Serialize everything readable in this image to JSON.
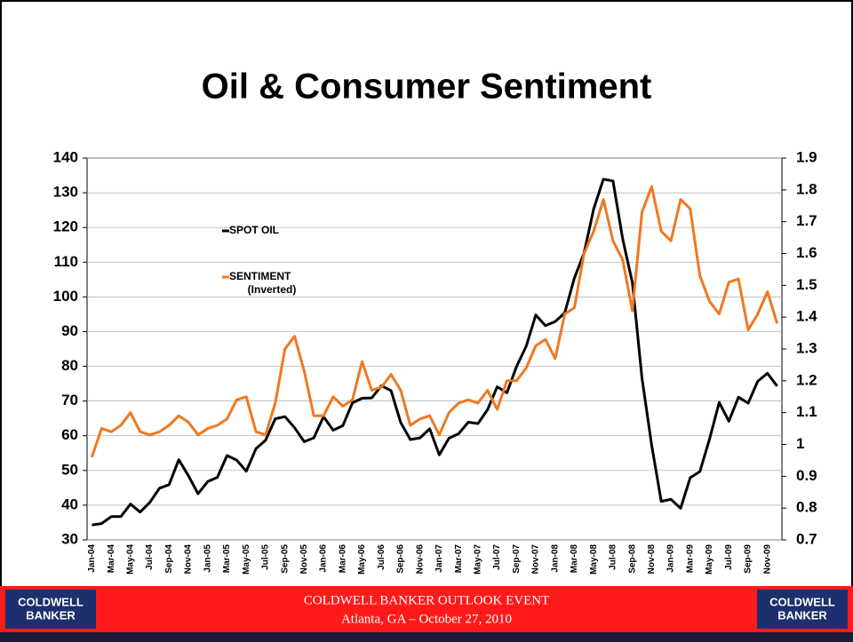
{
  "chart_data": {
    "type": "line",
    "title": "Oil & Consumer Sentiment",
    "categories": [
      "Jan-04",
      null,
      "Mar-04",
      null,
      "May-04",
      null,
      "Jul-04",
      null,
      "Sep-04",
      null,
      "Nov-04",
      null,
      "Jan-05",
      null,
      "Mar-05",
      null,
      "May-05",
      null,
      "Jul-05",
      null,
      "Sep-05",
      null,
      "Nov-05",
      null,
      "Jan-06",
      null,
      "Mar-06",
      null,
      "May-06",
      null,
      "Jul-06",
      null,
      "Sep-06",
      null,
      "Nov-06",
      null,
      "Jan-07",
      null,
      "Mar-07",
      null,
      "May-07",
      null,
      "Jul-07",
      null,
      "Sep-07",
      null,
      "Nov-07",
      null,
      "Jan-08",
      null,
      "Mar-08",
      null,
      "May-08",
      null,
      "Jul-08",
      null,
      "Sep-08",
      null,
      "Nov-08",
      null,
      "Jan-09",
      null,
      "Mar-09",
      null,
      "May-09",
      null,
      "Jul-09",
      null,
      "Sep-09",
      null,
      "Nov-09",
      null
    ],
    "series": [
      {
        "name": "SPOT OIL",
        "color": "#000000",
        "values": [
          34.3,
          34.7,
          36.7,
          36.7,
          40.3,
          38.0,
          40.8,
          44.9,
          45.9,
          53.1,
          48.5,
          43.3,
          46.8,
          48.0,
          54.3,
          53.0,
          49.8,
          56.3,
          58.7,
          64.9,
          65.5,
          62.3,
          58.3,
          59.4,
          65.5,
          61.6,
          62.9,
          69.5,
          70.8,
          70.9,
          74.4,
          73.0,
          63.8,
          58.9,
          59.4,
          62.0,
          54.5,
          59.3,
          60.6,
          63.9,
          63.5,
          67.5,
          74.1,
          72.4,
          79.9,
          85.8,
          94.8,
          91.7,
          92.9,
          95.4,
          105.5,
          112.6,
          125.4,
          133.9,
          133.4,
          116.7,
          104.1,
          76.6,
          57.3,
          41.1,
          41.7,
          39.1,
          47.9,
          49.7,
          59.0,
          69.6,
          64.2,
          71.1,
          69.4,
          75.7,
          78.0,
          74.3
        ]
      },
      {
        "name": "SENTIMENT",
        "name_note": "(Inverted)",
        "color": "#f07820",
        "axis": "y2",
        "values": [
          0.96,
          1.05,
          1.04,
          1.06,
          1.1,
          1.04,
          1.03,
          1.04,
          1.06,
          1.09,
          1.07,
          1.03,
          1.05,
          1.06,
          1.08,
          1.14,
          1.15,
          1.04,
          1.03,
          1.13,
          1.3,
          1.34,
          1.23,
          1.09,
          1.09,
          1.15,
          1.12,
          1.14,
          1.26,
          1.17,
          1.18,
          1.22,
          1.17,
          1.06,
          1.08,
          1.09,
          1.03,
          1.1,
          1.13,
          1.14,
          1.13,
          1.17,
          1.11,
          1.2,
          1.2,
          1.24,
          1.31,
          1.33,
          1.27,
          1.41,
          1.43,
          1.6,
          1.67,
          1.77,
          1.64,
          1.58,
          1.42,
          1.73,
          1.81,
          1.67,
          1.64,
          1.77,
          1.74,
          1.53,
          1.45,
          1.41,
          1.51,
          1.52,
          1.36,
          1.41,
          1.48,
          1.38
        ]
      }
    ],
    "ylim": [
      30,
      140
    ],
    "yticks": [
      30,
      40,
      50,
      60,
      70,
      80,
      90,
      100,
      110,
      120,
      130,
      140
    ],
    "y2lim": [
      0.7,
      1.9
    ],
    "y2ticks": [
      0.7,
      0.8,
      0.9,
      1,
      1.1,
      1.2,
      1.3,
      1.4,
      1.5,
      1.6,
      1.7,
      1.8,
      1.9
    ],
    "grid": true,
    "legend": "upper left"
  },
  "footer": {
    "line1": "COLDWELL BANKER OUTLOOK EVENT",
    "line2": "Atlanta, GA – October 27, 2010",
    "logo_top": "COLDWELL",
    "logo_bottom": "BANKER"
  }
}
